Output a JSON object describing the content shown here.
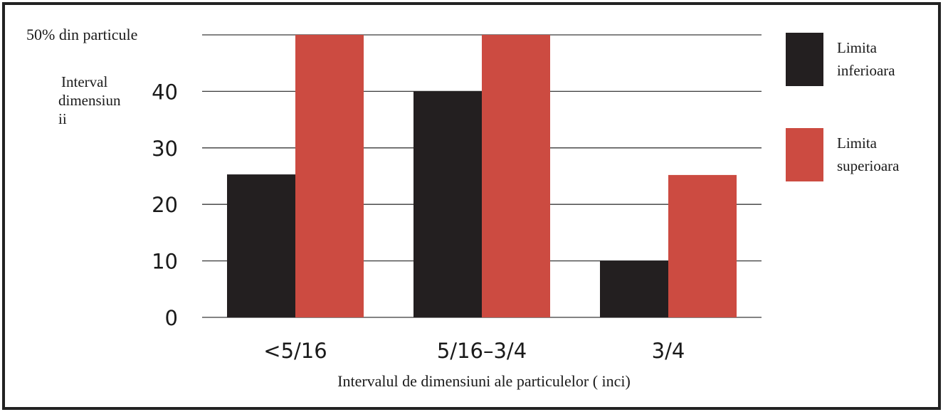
{
  "chart_data": {
    "type": "bar",
    "corner_label": "50% din particule",
    "ylabel_lines": [
      "Interval",
      "dimensiun",
      "ii"
    ],
    "xlabel": "Intervalul de dimensiuni ale particulelor ( inci)",
    "categories": [
      "<5/16",
      "5/16–3/4",
      "3/4"
    ],
    "series": [
      {
        "name_lines": [
          "Limita",
          "inferioara"
        ],
        "color": "#231f20",
        "values": [
          25.3,
          40,
          10
        ]
      },
      {
        "name_lines": [
          "Limita",
          "superioara"
        ],
        "color": "#cc4b41",
        "values": [
          50,
          50,
          25.2
        ]
      }
    ],
    "yticks": [
      "0",
      "10",
      "20",
      "30",
      "40"
    ],
    "ylim": [
      0,
      50
    ],
    "grid": true,
    "legend_position": "right"
  }
}
